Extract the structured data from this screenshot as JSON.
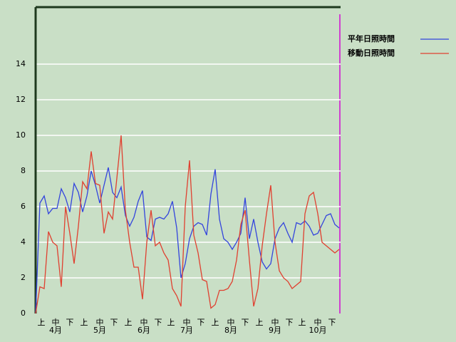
{
  "chart_data": {
    "type": "line",
    "x": [
      0,
      3,
      6,
      9,
      12,
      15,
      18,
      21,
      24,
      27,
      30,
      33,
      36,
      39,
      42,
      45,
      48,
      51,
      54,
      57,
      60,
      63,
      66,
      69,
      72,
      75,
      78,
      81,
      84,
      87,
      90,
      93,
      96,
      99,
      102,
      105,
      108,
      111,
      114,
      117,
      120,
      123,
      126,
      129,
      132,
      135,
      138,
      141,
      144,
      147,
      150,
      153,
      156,
      159,
      162,
      165,
      168,
      171,
      174,
      177,
      180,
      183,
      186,
      189,
      192,
      195,
      198,
      201,
      204,
      207,
      210,
      213
    ],
    "series": [
      {
        "name": "平年日照時間",
        "color": "#3344dd",
        "values": [
          0,
          6.2,
          6.6,
          5.6,
          5.9,
          5.9,
          7.0,
          6.5,
          5.7,
          7.3,
          6.8,
          5.7,
          6.6,
          8.0,
          7.2,
          6.2,
          7.2,
          8.2,
          6.8,
          6.5,
          7.1,
          5.5,
          4.9,
          5.4,
          6.3,
          6.9,
          4.3,
          4.1,
          5.3,
          5.4,
          5.3,
          5.6,
          6.3,
          4.8,
          2.0,
          2.8,
          4.2,
          4.9,
          5.1,
          5.0,
          4.4,
          6.7,
          8.1,
          5.3,
          4.2,
          4.0,
          3.6,
          4.0,
          4.5,
          6.5,
          4.2,
          5.3,
          4.0,
          2.9,
          2.5,
          2.8,
          4.2,
          4.8,
          5.1,
          4.5,
          4.0,
          5.1,
          5.0,
          5.2,
          4.9,
          4.4,
          4.5,
          5.0,
          5.5,
          5.6,
          5.0,
          4.8
        ]
      },
      {
        "name": "移動日照時間",
        "color": "#e04030",
        "values": [
          0,
          1.5,
          1.4,
          4.6,
          4.0,
          3.8,
          1.5,
          6.0,
          4.5,
          2.8,
          4.9,
          7.4,
          7.0,
          9.1,
          7.3,
          7.2,
          4.5,
          5.7,
          5.3,
          7.6,
          10.0,
          5.8,
          4.0,
          2.6,
          2.6,
          0.8,
          4.0,
          5.8,
          3.8,
          4.0,
          3.4,
          3.0,
          1.4,
          1.0,
          0.4,
          6.0,
          8.6,
          4.4,
          3.4,
          1.9,
          1.8,
          0.3,
          0.5,
          1.3,
          1.3,
          1.4,
          1.8,
          3.0,
          5.0,
          5.8,
          3.0,
          0.4,
          1.4,
          3.8,
          5.6,
          7.2,
          4.0,
          2.4,
          2.0,
          1.8,
          1.4,
          1.6,
          1.8,
          5.6,
          6.6,
          6.8,
          5.6,
          4.0,
          3.8,
          3.6,
          3.4,
          3.6
        ]
      }
    ],
    "xlim": [
      0,
      214
    ],
    "ylim": [
      0,
      17.2
    ],
    "yticks": [
      0,
      2,
      4,
      6,
      8,
      10,
      12,
      14
    ],
    "xticks": [
      {
        "value": 4,
        "label": "上"
      },
      {
        "value": 14,
        "label": "中"
      },
      {
        "value": 24,
        "label": "下"
      },
      {
        "value": 34,
        "label": "上"
      },
      {
        "value": 45,
        "label": "中"
      },
      {
        "value": 55,
        "label": "下"
      },
      {
        "value": 65,
        "label": "上"
      },
      {
        "value": 76,
        "label": "中"
      },
      {
        "value": 86,
        "label": "下"
      },
      {
        "value": 95,
        "label": "上"
      },
      {
        "value": 106,
        "label": "中"
      },
      {
        "value": 116,
        "label": "下"
      },
      {
        "value": 126,
        "label": "上"
      },
      {
        "value": 137,
        "label": "中"
      },
      {
        "value": 147,
        "label": "下"
      },
      {
        "value": 157,
        "label": "上"
      },
      {
        "value": 168,
        "label": "中"
      },
      {
        "value": 178,
        "label": "下"
      },
      {
        "value": 187,
        "label": "上"
      },
      {
        "value": 198,
        "label": "中"
      },
      {
        "value": 208,
        "label": "下"
      }
    ],
    "month_ticks": [
      {
        "value": 14,
        "label": "4月"
      },
      {
        "value": 45,
        "label": "5月"
      },
      {
        "value": 76,
        "label": "6月"
      },
      {
        "value": 106,
        "label": "7月"
      },
      {
        "value": 137,
        "label": "8月"
      },
      {
        "value": 168,
        "label": "9月"
      },
      {
        "value": 198,
        "label": "10月"
      }
    ],
    "grid": true
  }
}
